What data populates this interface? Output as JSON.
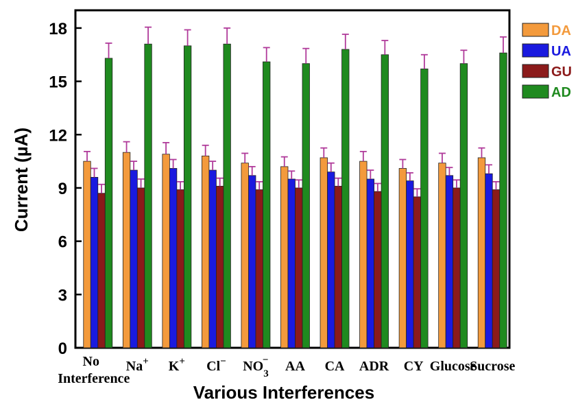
{
  "chart_data": {
    "type": "bar",
    "title": "",
    "xlabel": "Various Interferences",
    "ylabel": "Current (µA)",
    "ylim": [
      0,
      19
    ],
    "yticks": [
      0,
      3,
      6,
      9,
      12,
      15,
      18
    ],
    "grid": false,
    "legend_position": "right",
    "error_bar_color": "#b03a9a",
    "categories": [
      {
        "lines": [
          "No",
          "Interference"
        ]
      },
      {
        "base": "Na",
        "sup": "+"
      },
      {
        "base": "K",
        "sup": "+"
      },
      {
        "base": "Cl",
        "sup": "−"
      },
      {
        "base": "NO",
        "sub": "3",
        "sup": "−"
      },
      {
        "base": "AA"
      },
      {
        "base": "CA"
      },
      {
        "base": "ADR"
      },
      {
        "base": "CY"
      },
      {
        "base": "Glucose"
      },
      {
        "base": "Sucrose"
      }
    ],
    "series": [
      {
        "name": "DA",
        "color": "#f39a3c",
        "values": [
          10.5,
          11.0,
          10.9,
          10.8,
          10.4,
          10.2,
          10.7,
          10.5,
          10.1,
          10.4,
          10.7
        ],
        "errors": [
          0.55,
          0.6,
          0.65,
          0.6,
          0.55,
          0.55,
          0.55,
          0.55,
          0.5,
          0.55,
          0.55
        ]
      },
      {
        "name": "UA",
        "color": "#1a1adf",
        "values": [
          9.6,
          10.0,
          10.1,
          10.0,
          9.7,
          9.5,
          9.9,
          9.5,
          9.4,
          9.7,
          9.8
        ],
        "errors": [
          0.5,
          0.5,
          0.5,
          0.5,
          0.5,
          0.45,
          0.5,
          0.5,
          0.45,
          0.45,
          0.5
        ]
      },
      {
        "name": "GU",
        "color": "#8b1a1a",
        "values": [
          8.7,
          9.0,
          8.9,
          9.1,
          8.9,
          9.0,
          9.1,
          8.8,
          8.5,
          9.0,
          8.9
        ],
        "errors": [
          0.5,
          0.5,
          0.45,
          0.45,
          0.45,
          0.45,
          0.45,
          0.45,
          0.45,
          0.45,
          0.45
        ]
      },
      {
        "name": "AD",
        "color": "#1f8a1f",
        "values": [
          16.3,
          17.1,
          17.0,
          17.1,
          16.1,
          16.0,
          16.8,
          16.5,
          15.7,
          16.0,
          16.6
        ],
        "errors": [
          0.85,
          0.95,
          0.9,
          0.9,
          0.8,
          0.85,
          0.85,
          0.8,
          0.8,
          0.75,
          0.9
        ]
      }
    ]
  }
}
